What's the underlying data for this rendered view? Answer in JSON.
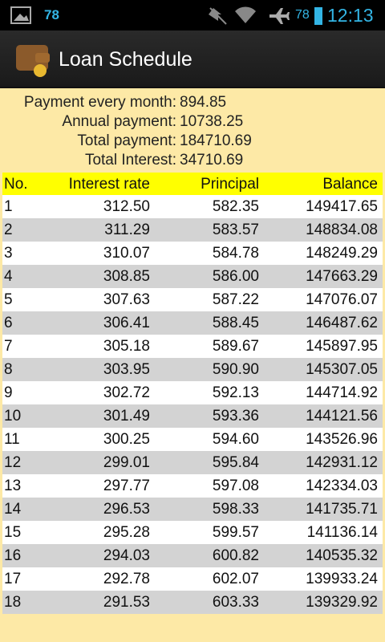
{
  "status_bar": {
    "notification_count": "78",
    "battery": "78",
    "time": "12:13"
  },
  "action_bar": {
    "title": "Loan Schedule"
  },
  "summary": [
    {
      "label": "Payment every month:",
      "value": "894.85"
    },
    {
      "label": "Annual payment:",
      "value": "10738.25"
    },
    {
      "label": "Total payment:",
      "value": "184710.69"
    },
    {
      "label": "Total Interest:",
      "value": "34710.69"
    }
  ],
  "table": {
    "header": [
      "No.",
      "Interest rate",
      "Principal",
      "Balance"
    ],
    "rows": [
      [
        "1",
        "312.50",
        "582.35",
        "149417.65"
      ],
      [
        "2",
        "311.29",
        "583.57",
        "148834.08"
      ],
      [
        "3",
        "310.07",
        "584.78",
        "148249.29"
      ],
      [
        "4",
        "308.85",
        "586.00",
        "147663.29"
      ],
      [
        "5",
        "307.63",
        "587.22",
        "147076.07"
      ],
      [
        "6",
        "306.41",
        "588.45",
        "146487.62"
      ],
      [
        "7",
        "305.18",
        "589.67",
        "145897.95"
      ],
      [
        "8",
        "303.95",
        "590.90",
        "145307.05"
      ],
      [
        "9",
        "302.72",
        "592.13",
        "144714.92"
      ],
      [
        "10",
        "301.49",
        "593.36",
        "144121.56"
      ],
      [
        "11",
        "300.25",
        "594.60",
        "143526.96"
      ],
      [
        "12",
        "299.01",
        "595.84",
        "142931.12"
      ],
      [
        "13",
        "297.77",
        "597.08",
        "142334.03"
      ],
      [
        "14",
        "296.53",
        "598.33",
        "141735.71"
      ],
      [
        "15",
        "295.28",
        "599.57",
        "141136.14"
      ],
      [
        "16",
        "294.03",
        "600.82",
        "140535.32"
      ],
      [
        "17",
        "292.78",
        "602.07",
        "139933.24"
      ],
      [
        "18",
        "291.53",
        "603.33",
        "139329.92"
      ]
    ]
  }
}
